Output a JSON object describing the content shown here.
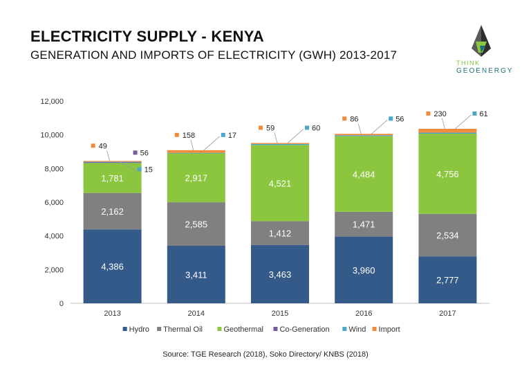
{
  "header": {
    "title": "ELECTRICITY SUPPLY - KENYA",
    "subtitle": "GENERATION AND IMPORTS OF ELECTRICITY (GWH) 2013-2017"
  },
  "logo": {
    "line1": "THINK",
    "line2": "GEOENERGY"
  },
  "source": "Source: TGE Research (2018), Soko Directory/ KNBS (2018)",
  "colors": {
    "Hydro": "#345a8a",
    "Thermal Oil": "#808080",
    "Geothermal": "#8cc63f",
    "Co-Generation": "#7a5a9e",
    "Wind": "#4ba8c8",
    "Import": "#f08c3c"
  },
  "chart_data": {
    "type": "bar",
    "stacked": true,
    "title": "",
    "xlabel": "",
    "ylabel": "",
    "ylim": [
      0,
      12000
    ],
    "yticks": [
      "0",
      "2,000",
      "4,000",
      "6,000",
      "8,000",
      "10,000",
      "12,000"
    ],
    "categories": [
      "2013",
      "2014",
      "2015",
      "2016",
      "2017"
    ],
    "series": [
      {
        "name": "Hydro",
        "values": [
          4386,
          3411,
          3463,
          3960,
          2777
        ],
        "labels": [
          "4,386",
          "3,411",
          "3,463",
          "3,960",
          "2,777"
        ]
      },
      {
        "name": "Thermal Oil",
        "values": [
          2162,
          2585,
          1412,
          1471,
          2534
        ],
        "labels": [
          "2,162",
          "2,585",
          "1,412",
          "1,471",
          "2,534"
        ]
      },
      {
        "name": "Geothermal",
        "values": [
          1781,
          2917,
          4521,
          4484,
          4756
        ],
        "labels": [
          "1,781",
          "2,917",
          "4,521",
          "4,484",
          "4,756"
        ]
      },
      {
        "name": "Co-Generation",
        "values": [
          56,
          0,
          0,
          0,
          0
        ],
        "labels": [
          "56",
          "",
          "",
          "",
          ""
        ]
      },
      {
        "name": "Wind",
        "values": [
          15,
          17,
          60,
          56,
          61
        ],
        "labels": [
          "15",
          "17",
          "60",
          "56",
          "61"
        ]
      },
      {
        "name": "Import",
        "values": [
          49,
          158,
          59,
          86,
          230
        ],
        "labels": [
          "49",
          "158",
          "59",
          "86",
          "230"
        ]
      }
    ],
    "grid": false,
    "legend_position": "bottom"
  }
}
